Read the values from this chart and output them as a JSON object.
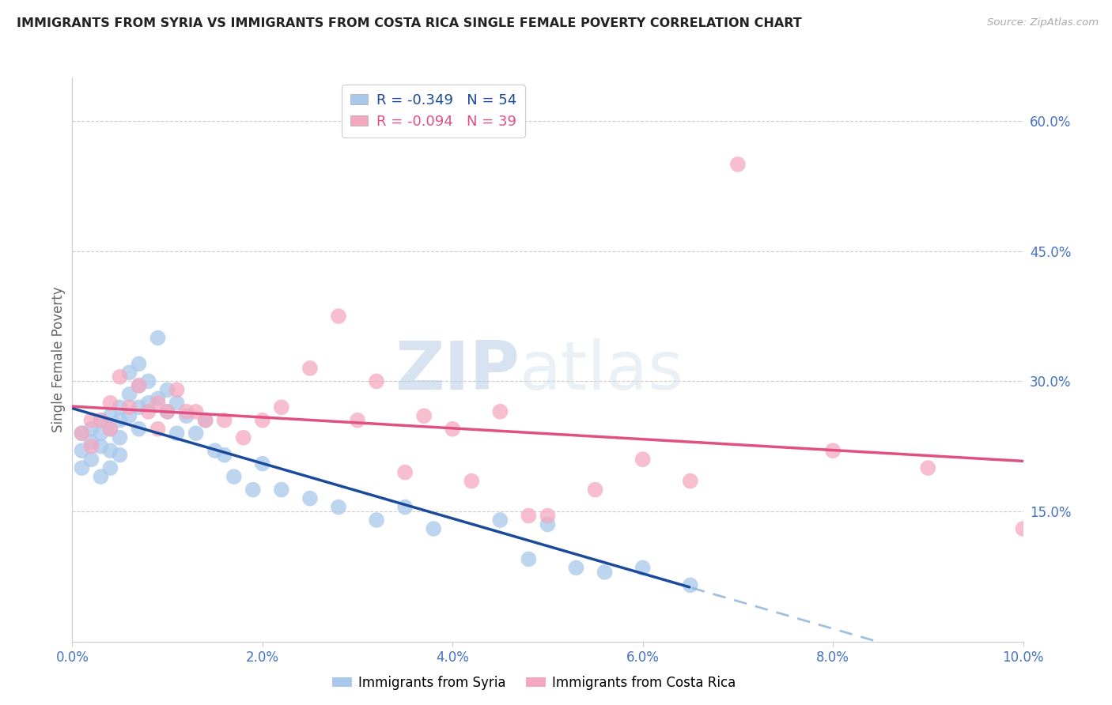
{
  "title": "IMMIGRANTS FROM SYRIA VS IMMIGRANTS FROM COSTA RICA SINGLE FEMALE POVERTY CORRELATION CHART",
  "source": "Source: ZipAtlas.com",
  "ylabel": "Single Female Poverty",
  "watermark_zip": "ZIP",
  "watermark_atlas": "atlas",
  "legend_syria": "Immigrants from Syria",
  "legend_cr": "Immigrants from Costa Rica",
  "r_syria": -0.349,
  "n_syria": 54,
  "r_cr": -0.094,
  "n_cr": 39,
  "xlim": [
    0.0,
    0.1
  ],
  "ylim": [
    0.0,
    0.65
  ],
  "yticks": [
    0.15,
    0.3,
    0.45,
    0.6
  ],
  "ytick_labels": [
    "15.0%",
    "30.0%",
    "45.0%",
    "60.0%"
  ],
  "xticks": [
    0.0,
    0.02,
    0.04,
    0.06,
    0.08,
    0.1
  ],
  "xtick_labels": [
    "0.0%",
    "2.0%",
    "4.0%",
    "6.0%",
    "8.0%",
    "10.0%"
  ],
  "color_syria": "#A8C8EC",
  "color_cr": "#F4A8C0",
  "color_syria_line": "#1A4A9C",
  "color_cr_line": "#E05080",
  "color_syria_line_dash": "#8AB0D8",
  "background_color": "#FFFFFF",
  "grid_color": "#CCCCCC",
  "axis_label_color": "#4472C4",
  "title_color": "#222222",
  "syria_x": [
    0.001,
    0.001,
    0.001,
    0.002,
    0.002,
    0.002,
    0.003,
    0.003,
    0.003,
    0.003,
    0.004,
    0.004,
    0.004,
    0.004,
    0.005,
    0.005,
    0.005,
    0.005,
    0.006,
    0.006,
    0.006,
    0.007,
    0.007,
    0.007,
    0.007,
    0.008,
    0.008,
    0.009,
    0.009,
    0.01,
    0.01,
    0.011,
    0.011,
    0.012,
    0.013,
    0.014,
    0.015,
    0.016,
    0.017,
    0.019,
    0.02,
    0.022,
    0.025,
    0.028,
    0.032,
    0.035,
    0.038,
    0.045,
    0.048,
    0.05,
    0.053,
    0.056,
    0.06,
    0.065
  ],
  "syria_y": [
    0.24,
    0.22,
    0.2,
    0.245,
    0.23,
    0.21,
    0.255,
    0.24,
    0.225,
    0.19,
    0.26,
    0.245,
    0.22,
    0.2,
    0.27,
    0.255,
    0.235,
    0.215,
    0.31,
    0.285,
    0.26,
    0.32,
    0.295,
    0.27,
    0.245,
    0.3,
    0.275,
    0.35,
    0.28,
    0.29,
    0.265,
    0.275,
    0.24,
    0.26,
    0.24,
    0.255,
    0.22,
    0.215,
    0.19,
    0.175,
    0.205,
    0.175,
    0.165,
    0.155,
    0.14,
    0.155,
    0.13,
    0.14,
    0.095,
    0.135,
    0.085,
    0.08,
    0.085,
    0.065
  ],
  "cr_x": [
    0.001,
    0.002,
    0.002,
    0.003,
    0.004,
    0.004,
    0.005,
    0.006,
    0.007,
    0.008,
    0.009,
    0.009,
    0.01,
    0.011,
    0.012,
    0.013,
    0.014,
    0.016,
    0.018,
    0.02,
    0.022,
    0.025,
    0.028,
    0.03,
    0.032,
    0.035,
    0.037,
    0.04,
    0.042,
    0.045,
    0.048,
    0.05,
    0.055,
    0.06,
    0.065,
    0.07,
    0.08,
    0.09,
    0.1
  ],
  "cr_y": [
    0.24,
    0.255,
    0.225,
    0.255,
    0.275,
    0.245,
    0.305,
    0.27,
    0.295,
    0.265,
    0.275,
    0.245,
    0.265,
    0.29,
    0.265,
    0.265,
    0.255,
    0.255,
    0.235,
    0.255,
    0.27,
    0.315,
    0.375,
    0.255,
    0.3,
    0.195,
    0.26,
    0.245,
    0.185,
    0.265,
    0.145,
    0.145,
    0.175,
    0.21,
    0.185,
    0.55,
    0.22,
    0.2,
    0.13
  ]
}
